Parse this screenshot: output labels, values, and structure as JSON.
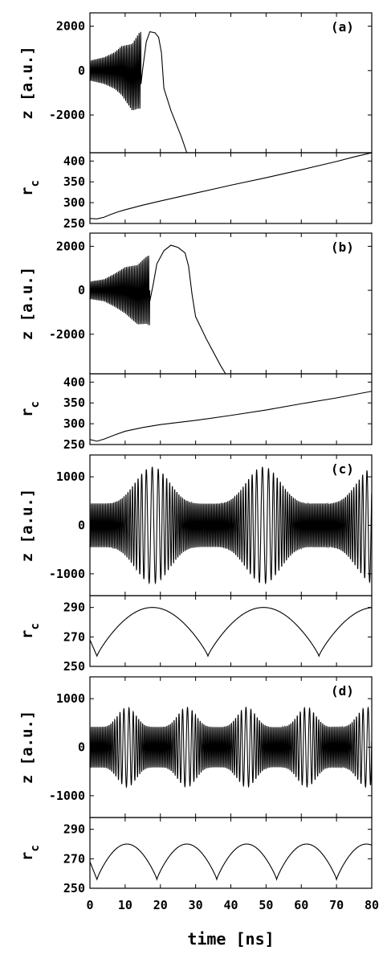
{
  "chart_data": [
    {
      "type": "line",
      "panel_label": "(a)",
      "ylabel": "z [a.u.]",
      "xlim": [
        0,
        80
      ],
      "ylim": [
        -3700,
        2600
      ],
      "yticks": [
        2000,
        0,
        -2000
      ],
      "trace": {
        "fast_period_ns": 0.45,
        "osc": [
          [
            0,
            450
          ],
          [
            4,
            600
          ],
          [
            7,
            820
          ],
          [
            9,
            1100
          ],
          [
            12,
            1500
          ],
          [
            14.5,
            1750
          ]
        ],
        "center": [
          [
            0,
            0
          ],
          [
            9,
            0
          ],
          [
            12,
            -300
          ],
          [
            14,
            0
          ]
        ],
        "switch_x": 14.5,
        "tail": [
          [
            14.5,
            -600
          ],
          [
            15,
            100
          ],
          [
            16,
            1300
          ],
          [
            17,
            1750
          ],
          [
            18.5,
            1700
          ],
          [
            19.5,
            1500
          ],
          [
            20.3,
            800
          ],
          [
            21,
            -800
          ],
          [
            23,
            -1800
          ],
          [
            26,
            -3000
          ],
          [
            27.5,
            -3700
          ]
        ]
      },
      "series": [
        {
          "name": "z",
          "values": []
        }
      ]
    },
    {
      "type": "line",
      "panel_label": "",
      "ylabel": "r_c",
      "xlim": [
        0,
        80
      ],
      "ylim": [
        250,
        420
      ],
      "yticks": [
        400,
        350,
        300,
        250
      ],
      "points": [
        [
          0,
          262
        ],
        [
          2,
          261
        ],
        [
          4,
          265
        ],
        [
          6,
          272
        ],
        [
          8,
          278
        ],
        [
          10,
          283
        ],
        [
          15,
          294
        ],
        [
          20,
          304
        ],
        [
          30,
          323
        ],
        [
          40,
          342
        ],
        [
          50,
          360
        ],
        [
          60,
          379
        ],
        [
          70,
          399
        ],
        [
          75,
          410
        ],
        [
          80,
          420
        ]
      ]
    },
    {
      "type": "line",
      "panel_label": "(b)",
      "ylabel": "z [a.u.]",
      "xlim": [
        0,
        80
      ],
      "ylim": [
        -3800,
        2600
      ],
      "yticks": [
        2000,
        0,
        -2000
      ],
      "trace": {
        "fast_period_ns": 0.45,
        "osc": [
          [
            0,
            400
          ],
          [
            4,
            500
          ],
          [
            7,
            750
          ],
          [
            10,
            1050
          ],
          [
            13.5,
            1350
          ],
          [
            17,
            1600
          ]
        ],
        "center": [
          [
            0,
            0
          ],
          [
            10,
            0
          ],
          [
            13.5,
            -200
          ],
          [
            16,
            0
          ]
        ],
        "switch_x": 17,
        "tail": [
          [
            17,
            -500
          ],
          [
            18,
            300
          ],
          [
            19,
            1200
          ],
          [
            21,
            1800
          ],
          [
            23,
            2050
          ],
          [
            25,
            1950
          ],
          [
            27,
            1700
          ],
          [
            28,
            1100
          ],
          [
            29,
            -200
          ],
          [
            30,
            -1200
          ],
          [
            33,
            -2200
          ],
          [
            37,
            -3400
          ],
          [
            38.5,
            -3800
          ]
        ]
      },
      "series": [
        {
          "name": "z",
          "values": []
        }
      ]
    },
    {
      "type": "line",
      "panel_label": "",
      "ylabel": "r_c",
      "xlim": [
        0,
        80
      ],
      "ylim": [
        250,
        420
      ],
      "yticks": [
        400,
        350,
        300,
        250
      ],
      "points": [
        [
          0,
          262
        ],
        [
          2,
          258
        ],
        [
          4,
          263
        ],
        [
          7,
          273
        ],
        [
          10,
          282
        ],
        [
          15,
          291
        ],
        [
          20,
          298
        ],
        [
          30,
          308
        ],
        [
          40,
          320
        ],
        [
          50,
          333
        ],
        [
          60,
          348
        ],
        [
          70,
          362
        ],
        [
          80,
          378
        ]
      ]
    },
    {
      "type": "line",
      "panel_label": "(c)",
      "ylabel": "z [a.u.]",
      "xlim": [
        0,
        80
      ],
      "ylim": [
        -1450,
        1450
      ],
      "yticks": [
        1000,
        0,
        -1000
      ],
      "trace": {
        "fast_period_ns": 0.45,
        "slow_cycle_ns": 31.5,
        "slow_phase_ns": 2,
        "slow_k_min": 0.6,
        "slow_k_max": 0.25,
        "amp_min": 450,
        "amp_max": 1200
      },
      "series": [
        {
          "name": "z",
          "values": []
        }
      ]
    },
    {
      "type": "line",
      "panel_label": "",
      "ylabel": "r_c",
      "xlim": [
        0,
        80
      ],
      "ylim": [
        250,
        298
      ],
      "yticks": [
        290,
        270,
        250
      ],
      "envelope": {
        "min": 257,
        "max": 290,
        "cycle_ns": 31.5,
        "phase_ns": 2,
        "start": 268
      }
    },
    {
      "type": "line",
      "panel_label": "(d)",
      "ylabel": "z [a.u.]",
      "xlim": [
        0,
        80
      ],
      "ylim": [
        -1450,
        1450
      ],
      "yticks": [
        1000,
        0,
        -1000
      ],
      "trace": {
        "fast_period_ns": 0.45,
        "slow_cycle_ns": 17,
        "slow_phase_ns": 2,
        "slow_k_min": 0.6,
        "slow_k_max": 0.3,
        "amp_min": 420,
        "amp_max": 820
      },
      "series": [
        {
          "name": "z",
          "values": []
        }
      ]
    },
    {
      "type": "line",
      "panel_label": "",
      "ylabel": "r_c",
      "xlim": [
        0,
        80
      ],
      "ylim": [
        250,
        298
      ],
      "yticks": [
        290,
        270,
        250
      ],
      "envelope": {
        "min": 256,
        "max": 280,
        "cycle_ns": 17,
        "phase_ns": 2,
        "start": 268
      }
    }
  ],
  "xaxis": {
    "label": "time [ns]",
    "ticks": [
      0,
      10,
      20,
      30,
      40,
      50,
      60,
      70,
      80
    ]
  }
}
